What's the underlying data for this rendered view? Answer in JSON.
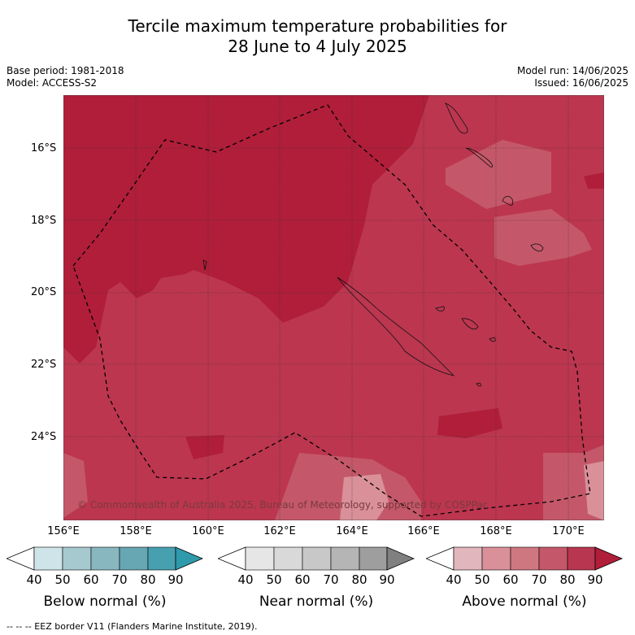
{
  "title_line1": "Tercile maximum temperature probabilities for",
  "title_line2": "28 June to 4 July 2025",
  "meta_left": {
    "base_period": "Base period: 1981-2018",
    "model": "Model: ACCESS-S2"
  },
  "meta_right": {
    "model_run": "Model run: 14/06/2025",
    "issued": "Issued: 16/06/2025"
  },
  "map": {
    "lat_labels": [
      "16°S",
      "18°S",
      "20°S",
      "22°S",
      "24°S"
    ],
    "lon_labels": [
      "156°E",
      "158°E",
      "160°E",
      "162°E",
      "164°E",
      "166°E",
      "168°E",
      "170°E"
    ],
    "credit": "© Commonwealth of Australia 2025, Bureau of Meteorology, supported by COSPPac"
  },
  "colorbars": [
    {
      "label": "Below normal (%)",
      "colors": [
        "#cfe4e8",
        "#a6c9cf",
        "#88b7c0",
        "#67a6b3",
        "#46a0b0",
        "#2f9aac"
      ]
    },
    {
      "label": "Near normal (%)",
      "colors": [
        "#e6e6e6",
        "#d9d9d9",
        "#c8c8c8",
        "#b5b5b5",
        "#9e9e9e",
        "#808080"
      ]
    },
    {
      "label": "Above normal (%)",
      "colors": [
        "#e2b6bd",
        "#d99099",
        "#cf7781",
        "#c4586a",
        "#b93650",
        "#b01e3a"
      ]
    }
  ],
  "colorbar_ticks": [
    "40",
    "50",
    "60",
    "70",
    "80",
    "90"
  ],
  "footer": "--  --  -- EEZ border V11 (Flanders Marine Institute, 2019)."
}
